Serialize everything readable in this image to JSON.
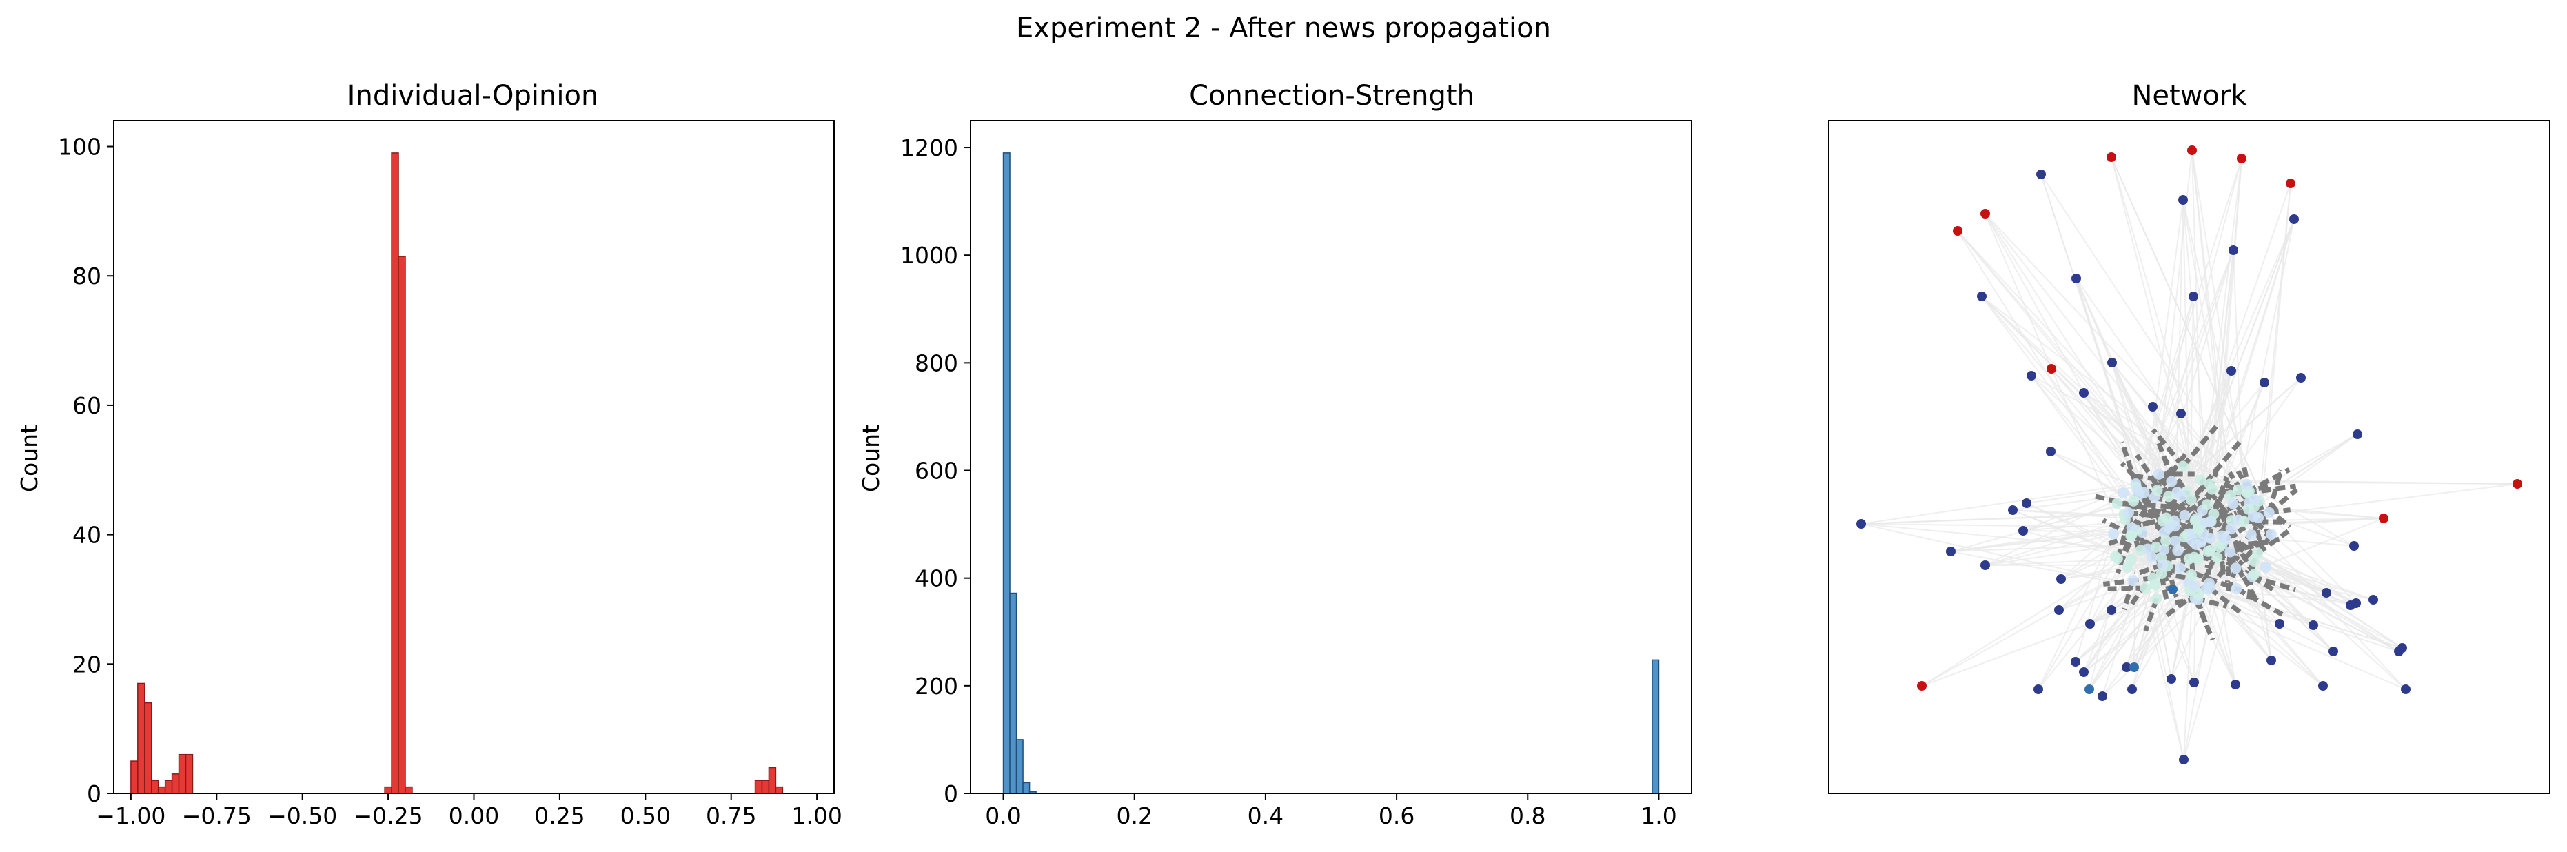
{
  "figure": {
    "suptitle": "Experiment 2 - After news propagation"
  },
  "chart_data": [
    {
      "type": "histogram",
      "title": "Individual-Opinion",
      "xlabel": "",
      "ylabel": "Count",
      "xlim": [
        -1.05,
        1.05
      ],
      "ylim": [
        0,
        104
      ],
      "xticks": [
        "-1.00",
        "-0.75",
        "-0.50",
        "-0.25",
        "0.00",
        "0.25",
        "0.50",
        "0.75",
        "1.00"
      ],
      "yticks": [
        "0",
        "20",
        "40",
        "60",
        "80",
        "100"
      ],
      "grid": false,
      "bar_color": "#e53935",
      "edge_color": "#8b1a1a",
      "bin_width": 0.02,
      "bins": [
        {
          "x": -0.99,
          "count": 5
        },
        {
          "x": -0.97,
          "count": 17
        },
        {
          "x": -0.95,
          "count": 14
        },
        {
          "x": -0.93,
          "count": 2
        },
        {
          "x": -0.91,
          "count": 1
        },
        {
          "x": -0.89,
          "count": 2
        },
        {
          "x": -0.87,
          "count": 3
        },
        {
          "x": -0.85,
          "count": 6
        },
        {
          "x": -0.83,
          "count": 6
        },
        {
          "x": -0.25,
          "count": 1
        },
        {
          "x": -0.23,
          "count": 99
        },
        {
          "x": -0.21,
          "count": 83
        },
        {
          "x": -0.19,
          "count": 1
        },
        {
          "x": 0.83,
          "count": 2
        },
        {
          "x": 0.85,
          "count": 2
        },
        {
          "x": 0.87,
          "count": 4
        },
        {
          "x": 0.89,
          "count": 1
        }
      ]
    },
    {
      "type": "histogram",
      "title": "Connection-Strength",
      "xlabel": "",
      "ylabel": "Count",
      "xlim": [
        -0.05,
        1.05
      ],
      "ylim": [
        0,
        1250
      ],
      "xticks": [
        "0.0",
        "0.2",
        "0.4",
        "0.6",
        "0.8",
        "1.0"
      ],
      "yticks": [
        "0",
        "200",
        "400",
        "600",
        "800",
        "1000",
        "1200"
      ],
      "grid": false,
      "bar_color": "#4f93c8",
      "edge_color": "#1f4e79",
      "bin_width": 0.01,
      "bins": [
        {
          "x": 0.005,
          "count": 1190
        },
        {
          "x": 0.015,
          "count": 372
        },
        {
          "x": 0.025,
          "count": 100
        },
        {
          "x": 0.035,
          "count": 20
        },
        {
          "x": 0.045,
          "count": 3
        },
        {
          "x": 0.995,
          "count": 248
        }
      ]
    },
    {
      "type": "network",
      "title": "Network",
      "node_colors": {
        "negative": "#2e3a8c",
        "moderate": "#2f6fb0",
        "center": "#cfe3f7",
        "center_alt": "#cdeee6",
        "positive": "#c81010"
      },
      "edge_color_strong": "#7a7a7a",
      "edge_color_weak": "#e9e9e9"
    }
  ]
}
